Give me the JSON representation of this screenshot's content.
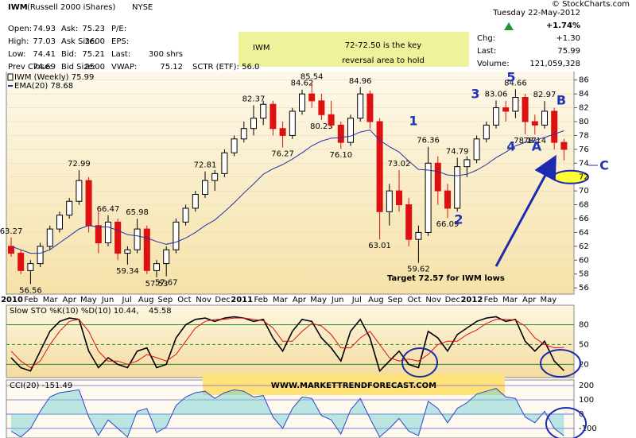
{
  "header": {
    "symbol": "IWM",
    "name": "(Russell 2000 iShares)",
    "exchange": "NYSE",
    "source": "© StockCharts.com",
    "date": "Tuesday 22-May-2012",
    "rows": [
      [
        "Open:",
        "74.93",
        "Ask:",
        "75.23",
        "P/E:",
        ""
      ],
      [
        "High:",
        "77.03",
        "Ask Size:",
        "3600",
        "EPS:",
        ""
      ],
      [
        "Low:",
        "74.41",
        "Bid:",
        "75.21",
        "Last:",
        "300 shrs"
      ],
      [
        "Prev Close:",
        "74.69",
        "Bid Size:",
        "2500",
        "VWAP:",
        "75.12"
      ]
    ],
    "sctr": "SCTR (ETF): 56.0",
    "change_pct": "+1.74%",
    "stats": [
      [
        "Chg:",
        "+1.30"
      ],
      [
        "Last:",
        "75.99"
      ],
      [
        "Volume:",
        "121,059,328"
      ]
    ]
  },
  "annotations": {
    "box": [
      "IWM",
      "72-72.50 is the key",
      "reversal area to hold"
    ],
    "waves": [
      "1",
      "2",
      "3",
      "4",
      "5",
      "A",
      "B",
      "C"
    ],
    "target": "Target 72.57 for IWM lows",
    "website": "WWW.MARKETTRENDFORECAST.COM"
  },
  "chart_data": [
    {
      "type": "candlestick",
      "ylim": [
        55.1,
        87
      ],
      "yticks": [
        56,
        58,
        60,
        62,
        64,
        66,
        68,
        70,
        72,
        74,
        76,
        78,
        80,
        82,
        84,
        86
      ],
      "xtick_labels": [
        "2010",
        "Feb",
        "Mar",
        "Apr",
        "May",
        "Jun",
        "Jul",
        "Aug",
        "Sep",
        "Oct",
        "Nov",
        "Dec",
        "2011",
        "Feb",
        "Mar",
        "Apr",
        "May",
        "Jun",
        "Jul",
        "Aug",
        "Sep",
        "Oct",
        "Nov",
        "Dec",
        "2012",
        "Feb",
        "Mar",
        "Apr",
        "May"
      ],
      "series": [
        {
          "name": "IWM (Weekly) 75.99",
          "up_color": "#000000",
          "down_color": "#dd1111",
          "open": [
            62,
            61,
            58.5,
            59.5,
            62,
            64.5,
            66.5,
            68.5,
            71.5,
            65,
            62.5,
            65.5,
            61,
            61.5,
            64.5,
            58.5,
            59.5,
            61.5,
            65.5,
            67.5,
            69.5,
            71.5,
            72.5,
            75.5,
            77.5,
            79,
            80.5,
            82.5,
            79,
            78,
            81.5,
            84,
            83,
            81,
            79.5,
            77,
            80.5,
            84,
            80,
            67,
            70,
            68,
            63,
            64,
            74,
            70,
            67.5,
            73.5,
            74.5,
            77.5,
            79.5,
            82,
            81.5,
            83.5,
            80,
            79.5,
            81.5,
            77
          ],
          "high": [
            63.27,
            61.5,
            60,
            62.5,
            65,
            67,
            69,
            72.99,
            72,
            67,
            66.47,
            66,
            62,
            65.98,
            65,
            60,
            62,
            66,
            68,
            70,
            72.81,
            73,
            76,
            78,
            80,
            82.37,
            83,
            83,
            80,
            82,
            84.62,
            85.54,
            84,
            83,
            80,
            81,
            84.96,
            84.5,
            80.5,
            71,
            73.02,
            69,
            65,
            76.36,
            75,
            71,
            74.79,
            75,
            78,
            80,
            83.06,
            83,
            84.66,
            84,
            81,
            82.97,
            82,
            77.5
          ],
          "low": [
            60.5,
            58,
            56.56,
            59,
            61.5,
            64,
            66,
            68,
            64,
            61,
            62,
            60,
            59.34,
            61,
            58,
            57.53,
            57.67,
            61,
            65,
            67,
            69,
            70,
            72,
            75,
            77,
            78,
            79.5,
            78,
            76.27,
            77.5,
            81,
            82,
            80.23,
            79,
            76.1,
            76.5,
            80,
            79,
            63.01,
            65,
            67,
            62,
            59.62,
            63.5,
            68,
            66.09,
            67,
            72,
            74,
            77,
            79,
            80,
            80.5,
            78.17,
            78.14,
            79,
            76,
            74.41
          ],
          "close": [
            61,
            58.5,
            59.5,
            62,
            64.5,
            66.5,
            68.5,
            71.5,
            65,
            62.5,
            65.5,
            61,
            61.5,
            64.5,
            58.5,
            59.5,
            61.5,
            65.5,
            67.5,
            69.5,
            71.5,
            72.5,
            75.5,
            77.5,
            79,
            80.5,
            82.5,
            79,
            78,
            81.5,
            84,
            83,
            81,
            79.5,
            77,
            80.5,
            84,
            80,
            67,
            70,
            68,
            63,
            64,
            74,
            70,
            67.5,
            73.5,
            74.5,
            77.5,
            79.5,
            82,
            81.5,
            83.5,
            80,
            79.5,
            81.5,
            77,
            75.99
          ],
          "high_labels": [
            "63.27",
            null,
            null,
            null,
            null,
            null,
            null,
            "72.99",
            null,
            null,
            "66.47",
            null,
            null,
            "65.98",
            null,
            null,
            null,
            null,
            null,
            null,
            "72.81",
            null,
            null,
            null,
            null,
            "82.37",
            null,
            null,
            null,
            null,
            "84.62",
            "85.54",
            null,
            null,
            null,
            null,
            "84.96",
            null,
            null,
            null,
            "73.02",
            null,
            null,
            "76.36",
            null,
            null,
            "74.79",
            null,
            null,
            null,
            "83.06",
            null,
            "84.66",
            null,
            null,
            "82.97",
            null,
            null
          ],
          "low_labels": [
            null,
            null,
            "56.56",
            null,
            null,
            null,
            null,
            null,
            null,
            null,
            null,
            null,
            "59.34",
            null,
            null,
            "57.53",
            "57.67",
            null,
            null,
            null,
            null,
            null,
            null,
            null,
            null,
            null,
            null,
            null,
            "76.27",
            null,
            null,
            null,
            "80.23",
            null,
            "76.10",
            null,
            null,
            null,
            "63.01",
            null,
            null,
            null,
            "59.62",
            null,
            null,
            "66.09",
            null,
            null,
            null,
            null,
            null,
            null,
            null,
            "78.17",
            "78.14",
            null,
            null,
            null
          ]
        },
        {
          "name": "EMA(20) 78.68",
          "color": "#2233aa",
          "values": [
            62,
            61.5,
            61,
            61,
            61.5,
            62.5,
            63.5,
            64.5,
            65,
            64.8,
            64.8,
            64.3,
            63.7,
            63.5,
            63.2,
            62.7,
            62.3,
            62.6,
            63.2,
            64,
            65,
            65.8,
            67,
            68.3,
            69.7,
            71,
            72.4,
            73.2,
            73.8,
            74.6,
            75.5,
            76.5,
            77.2,
            77.6,
            77.7,
            77.9,
            78.5,
            78.8,
            77.3,
            76.4,
            75.6,
            74.3,
            73.1,
            73,
            72.8,
            72.3,
            72.2,
            72.4,
            73,
            73.8,
            74.8,
            75.6,
            76.5,
            77,
            77.3,
            77.7,
            78.2,
            78.68
          ]
        }
      ]
    },
    {
      "type": "line",
      "title": "Slow STO %K(10) %D(10) 10.44,",
      "title_value": "45.58",
      "ylim": [
        0,
        107
      ],
      "yticks": [
        20,
        50,
        80
      ],
      "series": [
        {
          "name": "%K",
          "color": "#000000",
          "values": [
            30,
            15,
            10,
            40,
            70,
            85,
            90,
            88,
            40,
            15,
            30,
            20,
            15,
            40,
            45,
            15,
            20,
            60,
            80,
            88,
            90,
            85,
            90,
            92,
            90,
            85,
            88,
            60,
            40,
            70,
            88,
            85,
            60,
            45,
            25,
            70,
            88,
            60,
            10,
            25,
            40,
            20,
            15,
            70,
            60,
            40,
            65,
            75,
            85,
            90,
            92,
            85,
            88,
            55,
            40,
            55,
            25,
            10.44
          ]
        },
        {
          "name": "%D",
          "color": "#dd1111",
          "values": [
            40,
            25,
            15,
            25,
            50,
            70,
            85,
            88,
            70,
            40,
            25,
            25,
            20,
            25,
            35,
            30,
            25,
            35,
            55,
            75,
            85,
            88,
            88,
            90,
            90,
            88,
            86,
            75,
            55,
            55,
            70,
            82,
            78,
            65,
            45,
            45,
            60,
            70,
            50,
            30,
            25,
            28,
            25,
            35,
            50,
            55,
            55,
            65,
            72,
            82,
            88,
            88,
            87,
            78,
            60,
            50,
            45,
            45.58
          ]
        }
      ]
    },
    {
      "type": "area",
      "title": "CCI(20) -151.49",
      "ylim": [
        -167,
        239
      ],
      "yticks": [
        -100,
        0,
        100,
        200
      ],
      "series": [
        {
          "name": "CCI(20)",
          "color": "#3344cc",
          "fill": "#66cccc",
          "values": [
            -120,
            -160,
            -100,
            20,
            120,
            150,
            160,
            170,
            -20,
            -150,
            -40,
            -100,
            -160,
            20,
            40,
            -130,
            -90,
            60,
            120,
            150,
            160,
            110,
            150,
            170,
            160,
            120,
            130,
            -20,
            -100,
            40,
            120,
            110,
            -10,
            -40,
            -140,
            30,
            110,
            -30,
            -160,
            -100,
            -30,
            -120,
            -150,
            90,
            40,
            -60,
            40,
            80,
            140,
            160,
            180,
            120,
            110,
            -20,
            -60,
            20,
            -100,
            -151.49
          ]
        }
      ]
    }
  ]
}
